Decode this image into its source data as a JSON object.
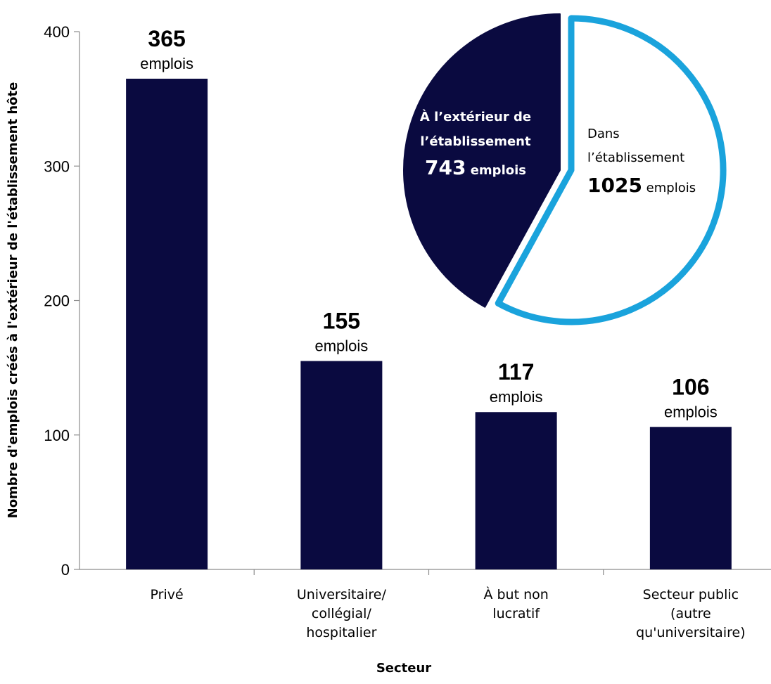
{
  "chart_data": [
    {
      "type": "bar",
      "xlabel": "Secteur",
      "ylabel": "Nombre d'emplois créés à l'extérieur de l'établissement hôte",
      "ylim": [
        0,
        400
      ],
      "yticks": [
        0,
        100,
        200,
        300,
        400
      ],
      "grid": false,
      "categories": [
        [
          "Privé"
        ],
        [
          "Universitaire/",
          "collégial/",
          "hospitalier"
        ],
        [
          "À but non",
          "lucratif"
        ],
        [
          "Secteur public",
          "(autre",
          "qu'universitaire)"
        ]
      ],
      "values": [
        365,
        155,
        117,
        106
      ],
      "value_unit": "emplois",
      "bar_color": "#0a0a40"
    },
    {
      "type": "pie",
      "slices": [
        {
          "label_lines": [
            "À l’extérieur de",
            "l’établissement"
          ],
          "value": 743,
          "unit": "emplois",
          "fill": "#0a0a40",
          "text_color": "#ffffff"
        },
        {
          "label_lines": [
            "Dans",
            "l’établissement"
          ],
          "value": 1025,
          "unit": "emplois",
          "fill": "#ffffff",
          "outline": "#1aa3dc",
          "text_color": "#000000"
        }
      ]
    }
  ]
}
